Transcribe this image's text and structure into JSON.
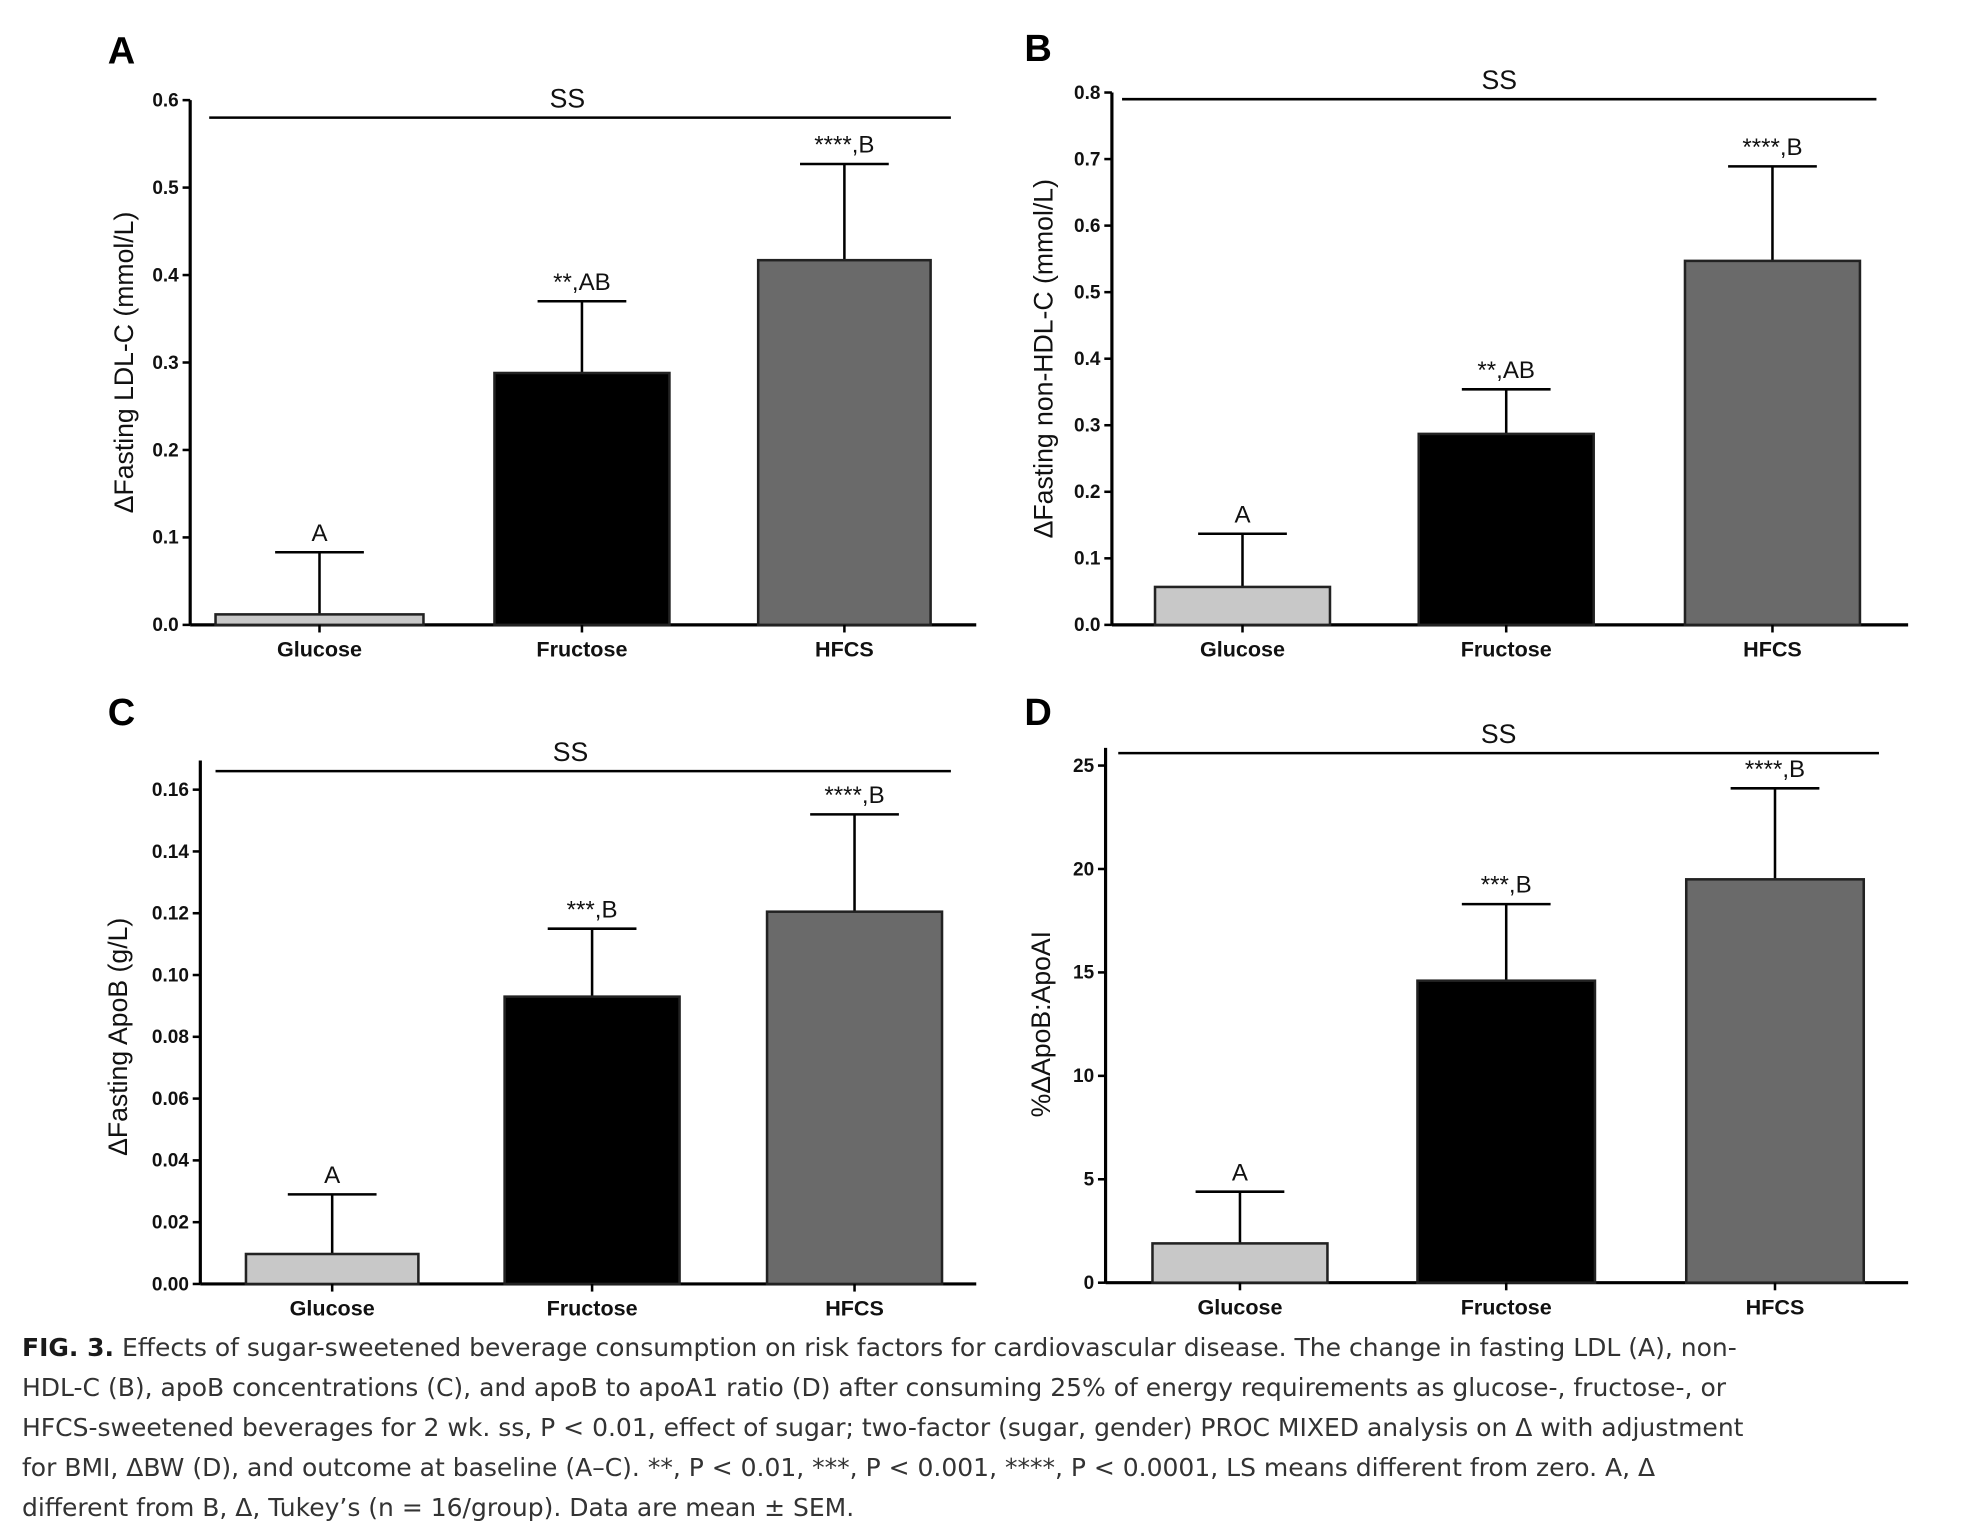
{
  "chart_data": [
    {
      "panel": "A",
      "type": "bar",
      "ylabel": "ΔFasting LDL-C (mmol/L)",
      "categories": [
        "Glucose",
        "Fructose",
        "HFCS"
      ],
      "values": [
        0.012,
        0.288,
        0.417
      ],
      "error_upper": [
        0.083,
        0.37,
        0.527
      ],
      "annotations": [
        "A",
        "**,AB",
        "****,B"
      ],
      "ylim": [
        0,
        0.6
      ],
      "yticks": [
        "0.0",
        "0.1",
        "0.2",
        "0.3",
        "0.4",
        "0.5",
        "0.6"
      ],
      "significance_label": "SS",
      "significance_level": 0.58,
      "colors": [
        "#c8c8c8",
        "#000000",
        "#6a6a6a"
      ]
    },
    {
      "panel": "B",
      "type": "bar",
      "ylabel": "ΔFasting non-HDL-C (mmol/L)",
      "categories": [
        "Glucose",
        "Fructose",
        "HFCS"
      ],
      "values": [
        0.057,
        0.287,
        0.547
      ],
      "error_upper": [
        0.137,
        0.354,
        0.689
      ],
      "annotations": [
        "A",
        "**,AB",
        "****,B"
      ],
      "ylim": [
        0,
        0.8
      ],
      "yticks": [
        "0.0",
        "0.1",
        "0.2",
        "0.3",
        "0.4",
        "0.5",
        "0.6",
        "0.7",
        "0.8"
      ],
      "significance_label": "SS",
      "significance_level": 0.79,
      "colors": [
        "#c8c8c8",
        "#000000",
        "#6a6a6a"
      ]
    },
    {
      "panel": "C",
      "type": "bar",
      "ylabel": "ΔFasting ApoB (g/L)",
      "categories": [
        "Glucose",
        "Fructose",
        "HFCS"
      ],
      "values": [
        0.0097,
        0.093,
        0.1205
      ],
      "error_upper": [
        0.029,
        0.115,
        0.152
      ],
      "annotations": [
        "A",
        "***,B",
        "****,B"
      ],
      "ylim": [
        0,
        0.16
      ],
      "yticks": [
        "0.00",
        "0.02",
        "0.04",
        "0.06",
        "0.08",
        "0.10",
        "0.12",
        "0.14",
        "0.16"
      ],
      "significance_label": "SS",
      "significance_level": 0.166,
      "colors": [
        "#c8c8c8",
        "#000000",
        "#6a6a6a"
      ]
    },
    {
      "panel": "D",
      "type": "bar",
      "ylabel": "%ΔApoB:ApoAI",
      "categories": [
        "Glucose",
        "Fructose",
        "HFCS"
      ],
      "values": [
        1.9,
        14.6,
        19.5
      ],
      "error_upper": [
        4.4,
        18.3,
        23.9
      ],
      "annotations": [
        "A",
        "***,B",
        "****,B"
      ],
      "ylim": [
        0,
        25
      ],
      "yticks": [
        "0",
        "5",
        "10",
        "15",
        "20",
        "25"
      ],
      "significance_label": "SS",
      "significance_level": 25.6,
      "colors": [
        "#c8c8c8",
        "#000000",
        "#6a6a6a"
      ]
    }
  ],
  "caption": {
    "label": "FIG. 3.",
    "lines": [
      " Effects of sugar-sweetened beverage consumption on risk factors for cardiovascular disease. The change in fasting LDL (A), non-",
      "HDL-C (B), apoB concentrations (C), and apoB to apoA1 ratio (D) after consuming 25% of energy requirements as glucose-, fructose-, or",
      "HFCS-sweetened beverages for 2 wk. ss, P < 0.01, effect of sugar; two-factor (sugar, gender) PROC MIXED analysis on Δ with adjustment",
      "for BMI, ΔBW (D), and outcome at baseline (A–C). **, P < 0.01, ***, P < 0.001, ****, P < 0.0001, LS means different from zero. A, Δ",
      "different from B, Δ, Tukey’s (n = 16/group). Data are mean ± SEM."
    ]
  }
}
